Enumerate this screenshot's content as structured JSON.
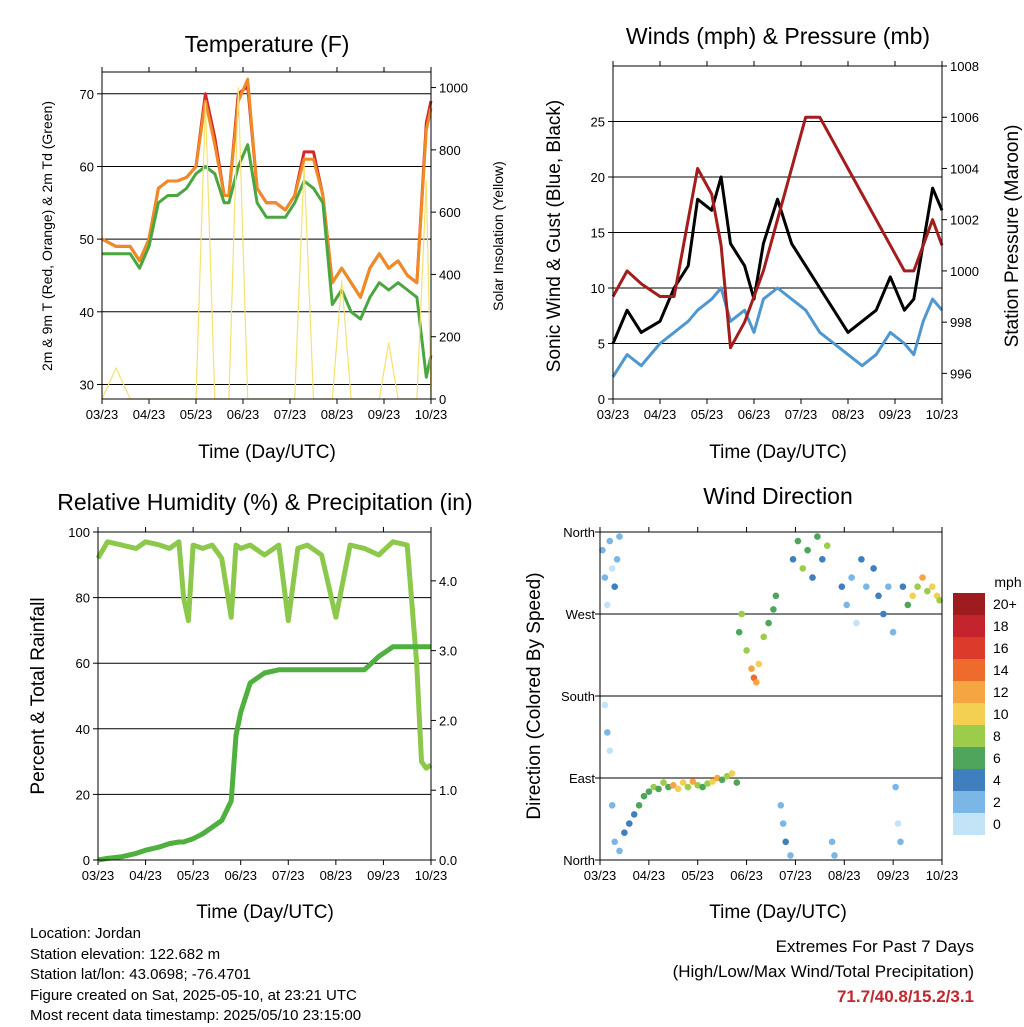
{
  "chart_data": [
    {
      "type": "line",
      "title": "Temperature (F)",
      "xlabel": "Time (Day/UTC)",
      "ylabel": "2m & 9m T (Red, Orange) & 2m Td (Green)",
      "ylabel_right": "Solar Insolation (Yellow)",
      "x_ticks": [
        "03/23",
        "04/23",
        "05/23",
        "06/23",
        "07/23",
        "08/23",
        "09/23",
        "10/23"
      ],
      "ylim": [
        28,
        73
      ],
      "y_ticks": [
        30,
        40,
        50,
        60,
        70
      ],
      "ylim_right": [
        0,
        1050
      ],
      "y_ticks_right": [
        0,
        200,
        400,
        600,
        800,
        1000
      ],
      "grid": true,
      "x": [
        0,
        0.3,
        0.6,
        0.8,
        1,
        1.2,
        1.4,
        1.6,
        1.8,
        2,
        2.2,
        2.4,
        2.6,
        2.7,
        2.9,
        3.1,
        3.3,
        3.5,
        3.7,
        3.9,
        4.1,
        4.3,
        4.5,
        4.7,
        4.9,
        5.1,
        5.3,
        5.5,
        5.7,
        5.9,
        6.1,
        6.3,
        6.5,
        6.7,
        6.9,
        7
      ],
      "series": [
        {
          "color": "#d7262b",
          "values": [
            50,
            49,
            49,
            47,
            50,
            57,
            58,
            58,
            58.5,
            60,
            70,
            64,
            56,
            56,
            70,
            71,
            57,
            55,
            55,
            54,
            56,
            62,
            62,
            56,
            44,
            46,
            44,
            42,
            46,
            48,
            46,
            47,
            45,
            44,
            66,
            69
          ]
        },
        {
          "color": "#f08a24",
          "values": [
            50,
            49,
            49,
            47,
            50,
            57,
            58,
            58,
            58.5,
            60,
            69,
            63,
            56,
            56,
            69,
            72,
            57,
            55,
            55,
            54,
            56,
            61,
            61,
            56,
            44,
            46,
            44,
            42,
            46,
            48,
            46,
            47,
            45,
            44,
            65,
            68
          ]
        },
        {
          "color": "#4aa63f",
          "values": [
            48,
            48,
            48,
            46,
            49,
            55,
            56,
            56,
            57,
            59,
            60,
            59,
            55,
            55,
            60,
            63,
            55,
            53,
            53,
            53,
            55,
            58,
            57,
            55,
            41,
            43,
            40,
            39,
            42,
            44,
            43,
            44,
            43,
            42,
            31,
            34
          ]
        },
        {
          "color": "#f5e170",
          "axis": "right",
          "values": [
            0,
            100,
            0,
            0,
            0,
            0,
            0,
            0,
            0,
            0,
            950,
            0,
            0,
            0,
            1000,
            0,
            0,
            0,
            0,
            0,
            0,
            750,
            0,
            0,
            0,
            380,
            0,
            0,
            0,
            0,
            180,
            0,
            0,
            0,
            700,
            0
          ]
        }
      ]
    },
    {
      "type": "line",
      "title": "Winds (mph) & Pressure (mb)",
      "xlabel": "Time (Day/UTC)",
      "ylabel": "Sonic Wind & Gust (Blue, Black)",
      "ylabel_right": "Station Pressure (Maroon)",
      "x_ticks": [
        "03/23",
        "04/23",
        "05/23",
        "06/23",
        "07/23",
        "08/23",
        "09/23",
        "10/23"
      ],
      "ylim": [
        0,
        30
      ],
      "y_ticks": [
        0,
        5,
        10,
        15,
        20,
        25
      ],
      "ylim_right": [
        995,
        1008
      ],
      "y_ticks_right": [
        996,
        998,
        1000,
        1002,
        1004,
        1006,
        1008
      ],
      "grid": true,
      "x": [
        0,
        0.3,
        0.6,
        1,
        1.3,
        1.6,
        1.8,
        2.1,
        2.3,
        2.5,
        2.8,
        3.0,
        3.2,
        3.5,
        3.8,
        4.1,
        4.4,
        4.7,
        5.0,
        5.3,
        5.6,
        5.9,
        6.2,
        6.4,
        6.6,
        6.8,
        7
      ],
      "series": [
        {
          "color": "#4f97d1",
          "values": [
            2,
            4,
            3,
            5,
            6,
            7,
            8,
            9,
            10,
            7,
            8,
            6,
            9,
            10,
            9,
            8,
            6,
            5,
            4,
            3,
            4,
            6,
            5,
            4,
            7,
            9,
            8
          ]
        },
        {
          "color": "#000000",
          "values": [
            5,
            8,
            6,
            7,
            10,
            12,
            18,
            17,
            20,
            14,
            12,
            9,
            14,
            18,
            14,
            12,
            10,
            8,
            6,
            7,
            8,
            11,
            8,
            9,
            14,
            19,
            17
          ]
        },
        {
          "color": "#a31d1d",
          "axis": "right",
          "values": [
            999,
            1000,
            999.5,
            999,
            999,
            1002,
            1004,
            1003,
            1001,
            997,
            998,
            999,
            1000,
            1002,
            1004,
            1006,
            1006,
            1005,
            1004,
            1003,
            1002,
            1001,
            1000,
            1000,
            1001,
            1002,
            1001
          ]
        }
      ]
    },
    {
      "type": "line",
      "title": "Relative Humidity (%) & Precipitation (in)",
      "xlabel": "Time (Day/UTC)",
      "ylabel": "Percent & Total Rainfall",
      "x_ticks": [
        "03/23",
        "04/23",
        "05/23",
        "06/23",
        "07/23",
        "08/23",
        "09/23",
        "10/23"
      ],
      "ylim": [
        0,
        100
      ],
      "y_ticks": [
        0,
        20,
        40,
        60,
        80,
        100
      ],
      "ylim_right": [
        0.0,
        4.7
      ],
      "y_ticks_right": [
        "0.0",
        "1.0",
        "2.0",
        "3.0",
        "4.0"
      ],
      "grid": true,
      "x": [
        0,
        0.2,
        0.5,
        0.8,
        1.0,
        1.3,
        1.5,
        1.7,
        1.8,
        1.9,
        2.0,
        2.2,
        2.4,
        2.6,
        2.8,
        2.9,
        3.0,
        3.2,
        3.5,
        3.8,
        4.0,
        4.2,
        4.4,
        4.7,
        5.0,
        5.3,
        5.6,
        5.9,
        6.2,
        6.5,
        6.7,
        6.8,
        6.9,
        7
      ],
      "series": [
        {
          "color": "#8cc84b",
          "values": [
            92,
            97,
            96,
            95,
            97,
            96,
            95,
            97,
            80,
            73,
            96,
            95,
            96,
            92,
            74,
            96,
            95,
            96,
            93,
            96,
            73,
            95,
            96,
            93,
            74,
            96,
            95,
            93,
            97,
            96,
            60,
            30,
            28,
            29
          ]
        },
        {
          "color": "#4fb040",
          "values": [
            0,
            0.5,
            1,
            2,
            3,
            4,
            5,
            5.5,
            5.5,
            6,
            6.5,
            8,
            10,
            12,
            18,
            38,
            45,
            54,
            57,
            58,
            58,
            58,
            58,
            58,
            58,
            58,
            58,
            62,
            65,
            65,
            65,
            65,
            65,
            65
          ]
        }
      ]
    },
    {
      "type": "scatter",
      "title": "Wind Direction",
      "xlabel": "Time (Day/UTC)",
      "ylabel": "Direction (Colored By Speed)",
      "x_ticks": [
        "03/23",
        "04/23",
        "05/23",
        "06/23",
        "07/23",
        "08/23",
        "09/23",
        "10/23"
      ],
      "y_ticks": [
        "North",
        "East",
        "South",
        "West",
        "North"
      ],
      "ylim": [
        0,
        360
      ],
      "grid": true,
      "colorbar_title": "mph",
      "colorbar_labels": [
        "20+",
        "18",
        "16",
        "14",
        "12",
        "10",
        "8",
        "6",
        "4",
        "2",
        "0"
      ],
      "colorbar_colors": [
        "#9e1b20",
        "#c4242b",
        "#dc3b2c",
        "#ee6a2d",
        "#f7a543",
        "#f3cf52",
        "#9bcc4a",
        "#4ea55b",
        "#3f7fbf",
        "#7bb7e6",
        "#c3e4f7"
      ],
      "points": [
        [
          0.05,
          340,
          2
        ],
        [
          0.1,
          310,
          3
        ],
        [
          0.15,
          280,
          1
        ],
        [
          0.2,
          350,
          2
        ],
        [
          0.25,
          320,
          1
        ],
        [
          0.3,
          300,
          4
        ],
        [
          0.35,
          330,
          3
        ],
        [
          0.4,
          355,
          2
        ],
        [
          0.1,
          170,
          1
        ],
        [
          0.15,
          140,
          2
        ],
        [
          0.2,
          120,
          1
        ],
        [
          0.25,
          60,
          3
        ],
        [
          0.3,
          20,
          2
        ],
        [
          0.4,
          10,
          3
        ],
        [
          0.5,
          30,
          4
        ],
        [
          0.6,
          40,
          4
        ],
        [
          0.7,
          50,
          5
        ],
        [
          0.8,
          60,
          6
        ],
        [
          0.9,
          70,
          7
        ],
        [
          1.0,
          75,
          6
        ],
        [
          1.1,
          80,
          8
        ],
        [
          1.2,
          78,
          7
        ],
        [
          1.3,
          85,
          9
        ],
        [
          1.4,
          80,
          6
        ],
        [
          1.5,
          82,
          12
        ],
        [
          1.6,
          78,
          11
        ],
        [
          1.7,
          85,
          10
        ],
        [
          1.8,
          80,
          9
        ],
        [
          1.9,
          86,
          12
        ],
        [
          2.0,
          82,
          8
        ],
        [
          2.1,
          80,
          7
        ],
        [
          2.2,
          84,
          9
        ],
        [
          2.3,
          86,
          10
        ],
        [
          2.4,
          90,
          12
        ],
        [
          2.5,
          88,
          7
        ],
        [
          2.6,
          92,
          8
        ],
        [
          2.7,
          95,
          11
        ],
        [
          2.8,
          85,
          6
        ],
        [
          2.85,
          250,
          6
        ],
        [
          2.9,
          270,
          8
        ],
        [
          3.0,
          230,
          9
        ],
        [
          3.1,
          210,
          12
        ],
        [
          3.15,
          200,
          14
        ],
        [
          3.2,
          195,
          13
        ],
        [
          3.25,
          215,
          10
        ],
        [
          3.35,
          245,
          8
        ],
        [
          3.45,
          260,
          7
        ],
        [
          3.55,
          275,
          6
        ],
        [
          3.6,
          290,
          6
        ],
        [
          3.7,
          60,
          2
        ],
        [
          3.75,
          40,
          3
        ],
        [
          3.8,
          20,
          4
        ],
        [
          3.9,
          5,
          3
        ],
        [
          3.95,
          330,
          5
        ],
        [
          4.05,
          350,
          6
        ],
        [
          4.15,
          320,
          8
        ],
        [
          4.25,
          340,
          7
        ],
        [
          4.35,
          310,
          5
        ],
        [
          4.45,
          355,
          6
        ],
        [
          4.55,
          330,
          4
        ],
        [
          4.65,
          345,
          8
        ],
        [
          4.75,
          20,
          2
        ],
        [
          4.8,
          5,
          3
        ],
        [
          4.95,
          300,
          4
        ],
        [
          5.05,
          280,
          3
        ],
        [
          5.15,
          310,
          2
        ],
        [
          5.25,
          260,
          1
        ],
        [
          5.35,
          330,
          4
        ],
        [
          5.45,
          300,
          3
        ],
        [
          5.6,
          320,
          4
        ],
        [
          5.7,
          290,
          5
        ],
        [
          5.8,
          270,
          4
        ],
        [
          5.9,
          300,
          3
        ],
        [
          6.0,
          250,
          2
        ],
        [
          6.05,
          80,
          2
        ],
        [
          6.1,
          40,
          1
        ],
        [
          6.15,
          20,
          3
        ],
        [
          6.2,
          300,
          5
        ],
        [
          6.3,
          280,
          6
        ],
        [
          6.4,
          290,
          10
        ],
        [
          6.5,
          300,
          8
        ],
        [
          6.6,
          310,
          12
        ],
        [
          6.7,
          295,
          9
        ],
        [
          6.8,
          300,
          11
        ],
        [
          6.9,
          290,
          10
        ],
        [
          6.95,
          285,
          8
        ]
      ]
    }
  ],
  "footer": {
    "location": "Location: Jordan",
    "elevation": "Station elevation: 122.682 m",
    "latlon": "Station lat/lon: 43.0698; -76.4701",
    "created": "Figure created on Sat, 2025-05-10, at 23:21 UTC",
    "latest": "Most recent data timestamp: 2025/05/10 23:15:00",
    "extremes_title": "Extremes For Past 7 Days",
    "extremes_sub": "(High/Low/Max Wind/Total Precipitation)",
    "extremes_values": "71.7/40.8/15.2/3.1"
  }
}
